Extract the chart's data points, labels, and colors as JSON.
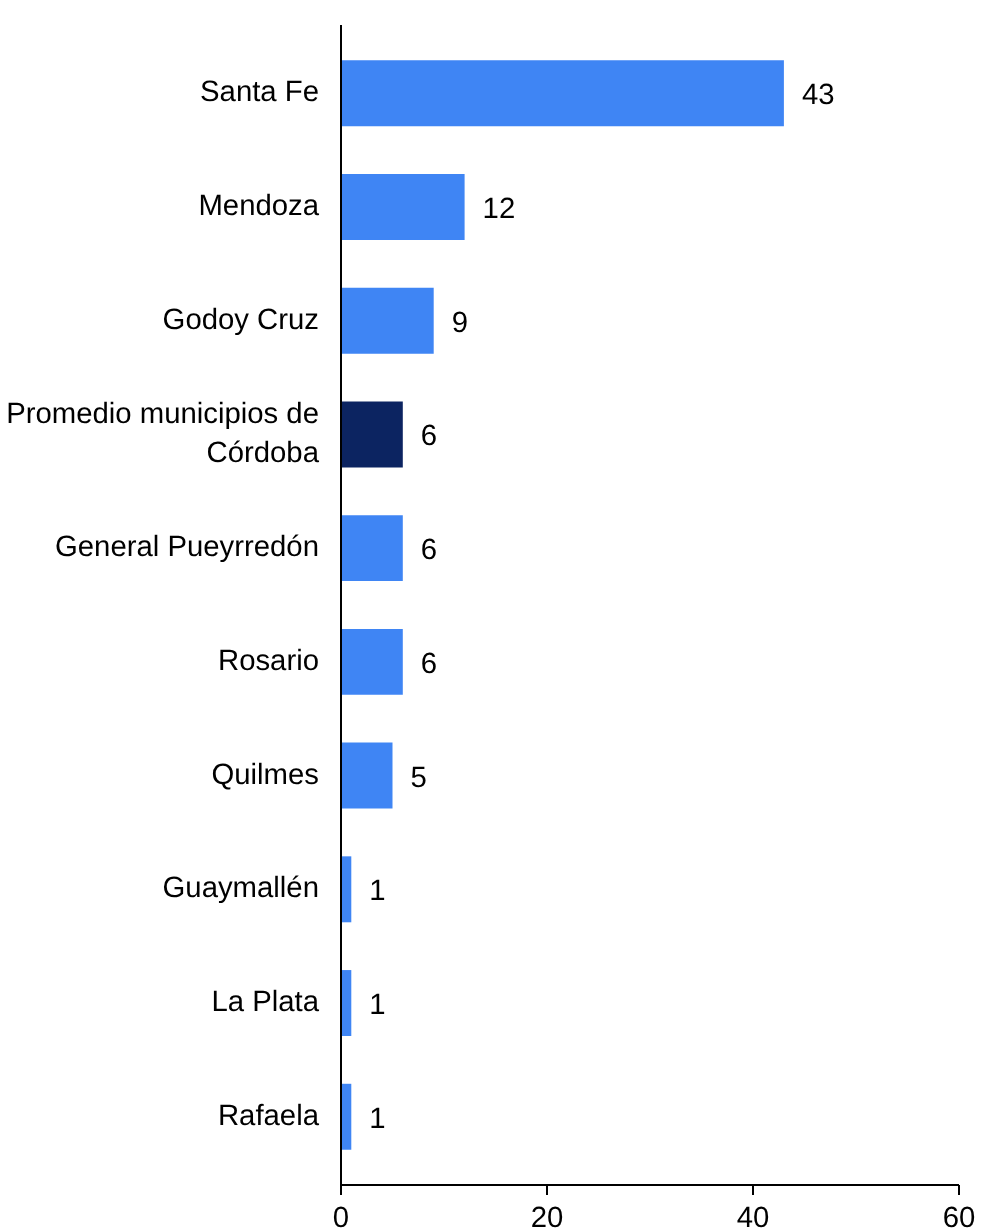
{
  "chart_data": {
    "type": "bar",
    "orientation": "horizontal",
    "categories": [
      "Santa Fe",
      "Mendoza",
      "Godoy Cruz",
      "Promedio municipios de Córdoba",
      "General Pueyrredón",
      "Rosario",
      "Quilmes",
      "Guaymallén",
      "La Plata",
      "Rafaela"
    ],
    "values": [
      43,
      12,
      9,
      6,
      6,
      6,
      5,
      1,
      1,
      1
    ],
    "colors": [
      "#3f85f4",
      "#3f85f4",
      "#3f85f4",
      "#0c2461",
      "#3f85f4",
      "#3f85f4",
      "#3f85f4",
      "#3f85f4",
      "#3f85f4",
      "#3f85f4"
    ],
    "xlim": [
      0,
      60
    ],
    "xticks": [
      0,
      20,
      40,
      60
    ],
    "grid": false,
    "data_labels": true
  }
}
